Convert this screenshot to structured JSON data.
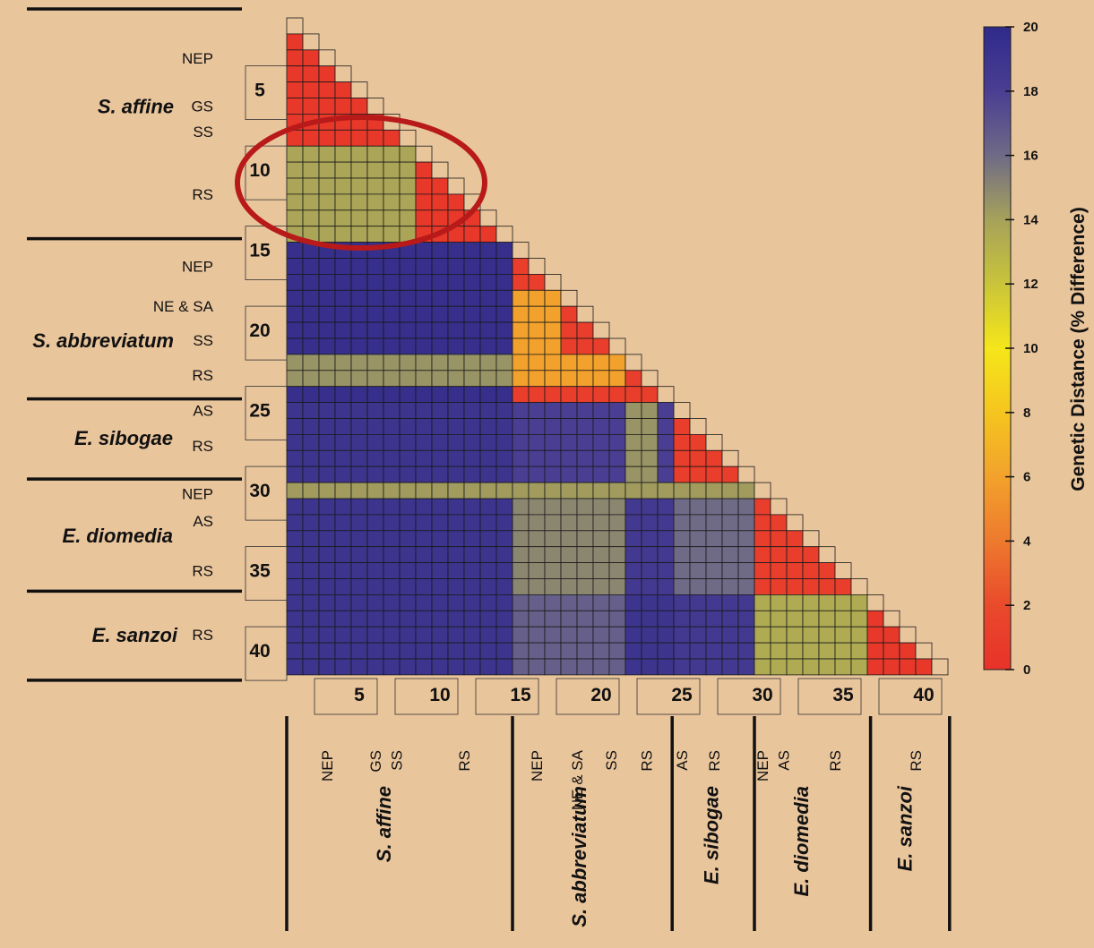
{
  "chart_data": {
    "type": "heatmap",
    "description_matrix": "lower-triangular pairwise genetic distance, 41 sequences",
    "n": 41,
    "groups": [
      {
        "name": "S. affine",
        "start": 1,
        "end": 14,
        "regions": [
          {
            "label": "NEP",
            "start": 1,
            "end": 5
          },
          {
            "label": "GS",
            "start": 6,
            "end": 6
          },
          {
            "label": "SS",
            "start": 7,
            "end": 8
          },
          {
            "label": "RS",
            "start": 9,
            "end": 14
          }
        ]
      },
      {
        "name": "S. abbreviatum",
        "start": 15,
        "end": 24,
        "regions": [
          {
            "label": "NEP",
            "start": 15,
            "end": 17
          },
          {
            "label": "NE & SA",
            "start": 18,
            "end": 19
          },
          {
            "label": "SS",
            "start": 20,
            "end": 21
          },
          {
            "label": "RS",
            "start": 22,
            "end": 24
          }
        ]
      },
      {
        "name": "E. sibogae",
        "start": 25,
        "end": 29,
        "regions": [
          {
            "label": "AS",
            "start": 25,
            "end": 25
          },
          {
            "label": "RS",
            "start": 26,
            "end": 29
          }
        ]
      },
      {
        "name": "E. diomedia",
        "start": 30,
        "end": 36,
        "regions": [
          {
            "label": "NEP",
            "start": 30,
            "end": 30
          },
          {
            "label": "AS",
            "start": 31,
            "end": 32
          },
          {
            "label": "RS",
            "start": 33,
            "end": 36
          }
        ]
      },
      {
        "name": "E. sanzoi",
        "start": 37,
        "end": 41,
        "regions": [
          {
            "label": "RS",
            "start": 37,
            "end": 41
          }
        ]
      }
    ],
    "block_distances": [
      [
        0.5
      ],
      [
        19.5,
        1.0
      ],
      [
        19.0,
        18.0,
        1.0
      ],
      [
        19.0,
        18.5,
        19.5,
        1.0
      ],
      [
        19.0,
        19.0,
        18.5,
        18.0,
        0.5
      ]
    ],
    "overrides": [
      {
        "rows": [
          9,
          14
        ],
        "cols": [
          1,
          8
        ],
        "value": 13.8,
        "note": "S. affine RS vs other S. affine"
      },
      {
        "rows": [
          22,
          23
        ],
        "cols": [
          1,
          14
        ],
        "value": 14.5
      },
      {
        "rows": [
          22,
          23
        ],
        "cols": [
          15,
          21
        ],
        "value": 6.0
      },
      {
        "rows": [
          18,
          21
        ],
        "cols": [
          15,
          17
        ],
        "value": 6.0
      },
      {
        "rows": [
          30,
          30
        ],
        "cols": [
          1,
          29
        ],
        "value": 14.2
      },
      {
        "rows": [
          31,
          36
        ],
        "cols": [
          15,
          21
        ],
        "value": 15.0
      },
      {
        "rows": [
          31,
          36
        ],
        "cols": [
          25,
          29
        ],
        "value": 16.0
      },
      {
        "rows": [
          37,
          41
        ],
        "cols": [
          30,
          36
        ],
        "value": 13.5
      },
      {
        "rows": [
          37,
          41
        ],
        "cols": [
          15,
          21
        ],
        "value": 16.5
      },
      {
        "rows": [
          25,
          29
        ],
        "cols": [
          22,
          23
        ],
        "value": 14.5
      }
    ],
    "row_ticks": [
      "5",
      "10",
      "15",
      "20",
      "25",
      "30",
      "35",
      "40"
    ],
    "col_ticks": [
      "5",
      "10",
      "15",
      "20",
      "25",
      "30",
      "35",
      "40"
    ],
    "colorbar": {
      "label": "Genetic Distance (% Difference)",
      "ticks": [
        0,
        2,
        4,
        6,
        8,
        10,
        12,
        14,
        16,
        18,
        20
      ],
      "range": [
        0,
        20
      ],
      "stops": [
        {
          "v": 0,
          "color": "#E8322A"
        },
        {
          "v": 2,
          "color": "#E94A2B"
        },
        {
          "v": 4,
          "color": "#EE7A2E"
        },
        {
          "v": 6,
          "color": "#F2A22C"
        },
        {
          "v": 8,
          "color": "#F5C51F"
        },
        {
          "v": 10,
          "color": "#F5E61A"
        },
        {
          "v": 12,
          "color": "#C9C43A"
        },
        {
          "v": 14,
          "color": "#A6A25A"
        },
        {
          "v": 16,
          "color": "#6F6A86"
        },
        {
          "v": 18,
          "color": "#4A3E92"
        },
        {
          "v": 20,
          "color": "#2F2A8A"
        }
      ]
    },
    "highlight": "red ellipse around S. affine RS within-group block"
  },
  "ui": {
    "left_labels": [
      {
        "text": "NEP",
        "row": 3
      },
      {
        "text": "GS",
        "row": 6
      },
      {
        "text": "SS",
        "row": 7.6
      },
      {
        "text": "RS",
        "row": 11.5
      },
      {
        "text": "NEP",
        "row": 16
      },
      {
        "text": "NE & SA",
        "row": 18.5
      },
      {
        "text": "SS",
        "row": 20.6
      },
      {
        "text": "RS",
        "row": 22.8
      },
      {
        "text": "AS",
        "row": 25
      },
      {
        "text": "RS",
        "row": 27.2
      },
      {
        "text": "NEP",
        "row": 30.2
      },
      {
        "text": "AS",
        "row": 31.9
      },
      {
        "text": "RS",
        "row": 35
      },
      {
        "text": "RS",
        "row": 39
      }
    ],
    "left_species": [
      {
        "text": "S. affine",
        "row": 6
      },
      {
        "text": "S. abbreviatum",
        "row": 20.6
      },
      {
        "text": "E. sibogae",
        "row": 26.7
      },
      {
        "text": "E. diomedia",
        "row": 32.8
      },
      {
        "text": "E. sanzoi",
        "row": 39
      }
    ],
    "bottom_labels": [
      {
        "text": "NEP",
        "col": 3
      },
      {
        "text": "GS",
        "col": 6
      },
      {
        "text": "SS",
        "col": 7.3
      },
      {
        "text": "RS",
        "col": 11.5
      },
      {
        "text": "NEP",
        "col": 16
      },
      {
        "text": "NE & SA",
        "col": 18.5
      },
      {
        "text": "SS",
        "col": 20.6
      },
      {
        "text": "RS",
        "col": 22.8
      },
      {
        "text": "AS",
        "col": 25
      },
      {
        "text": "RS",
        "col": 27
      },
      {
        "text": "NEP",
        "col": 30
      },
      {
        "text": "AS",
        "col": 31.3
      },
      {
        "text": "RS",
        "col": 34.5
      },
      {
        "text": "RS",
        "col": 39.5
      }
    ],
    "bottom_species": [
      {
        "text": "S. affine",
        "col": 6.5
      },
      {
        "text": "S. abbreviatum",
        "col": 18.6
      },
      {
        "text": "E. sibogae",
        "col": 26.8
      },
      {
        "text": "E. diomedia",
        "col": 32.4
      },
      {
        "text": "E. sanzoi",
        "col": 38.8
      }
    ]
  }
}
